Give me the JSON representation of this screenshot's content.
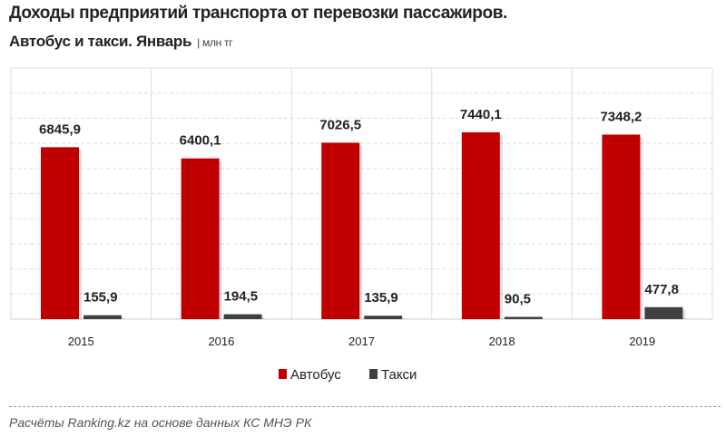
{
  "title": "Доходы предприятий транспорта от перевозки пассажиров.",
  "subtitle": "Автобус и такси. Январь",
  "unit": "| млн тг",
  "source": "Расчёты Ranking.kz на основе данных  КС МНЭ РК",
  "chart_data": {
    "type": "bar",
    "categories": [
      "2015",
      "2016",
      "2017",
      "2018",
      "2019"
    ],
    "series": [
      {
        "name": "Автобус",
        "color": "#c00000",
        "values": [
          6845.9,
          6400.1,
          7026.5,
          7440.1,
          7348.2
        ],
        "labels": [
          "6845,9",
          "6400,1",
          "7026,5",
          "7440,1",
          "7348,2"
        ]
      },
      {
        "name": "Такси",
        "color": "#404040",
        "values": [
          155.9,
          194.5,
          135.9,
          90.5,
          477.8
        ],
        "labels": [
          "155,9",
          "194,5",
          "135,9",
          "90,5",
          "477,8"
        ]
      }
    ],
    "ylim": [
      0,
      10000
    ],
    "grid": true,
    "legend": "bottom"
  }
}
